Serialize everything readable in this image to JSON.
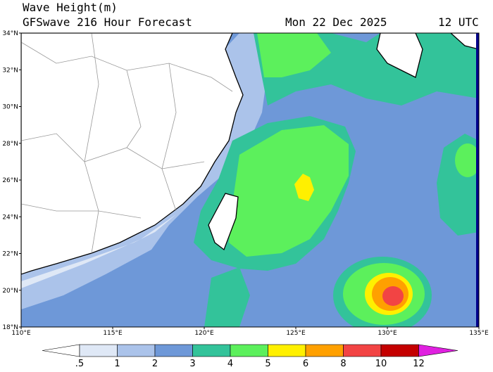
{
  "header": {
    "title": "Wave Height(m)",
    "subtitle": "GFSwave 216 Hour Forecast",
    "date": "Mon 22 Dec 2025",
    "time": "12 UTC"
  },
  "axes": {
    "lat_labels": [
      "34°N",
      "32°N",
      "30°N",
      "28°N",
      "26°N",
      "24°N",
      "22°N",
      "20°N",
      "18°N"
    ],
    "lon_labels": [
      "110°E",
      "115°E",
      "120°E",
      "125°E",
      "130°E",
      "135°E"
    ]
  },
  "legend": {
    "labels": [
      ".5",
      "1",
      "2",
      "3",
      "4",
      "5",
      "6",
      "8",
      "10",
      "12"
    ],
    "colors": [
      "#ffffff",
      "#dfe8f6",
      "#abc3ea",
      "#6e98d8",
      "#33c39a",
      "#5cf05c",
      "#fff000",
      "#ffa000",
      "#f24444",
      "#c40000",
      "#e020e0"
    ]
  }
}
